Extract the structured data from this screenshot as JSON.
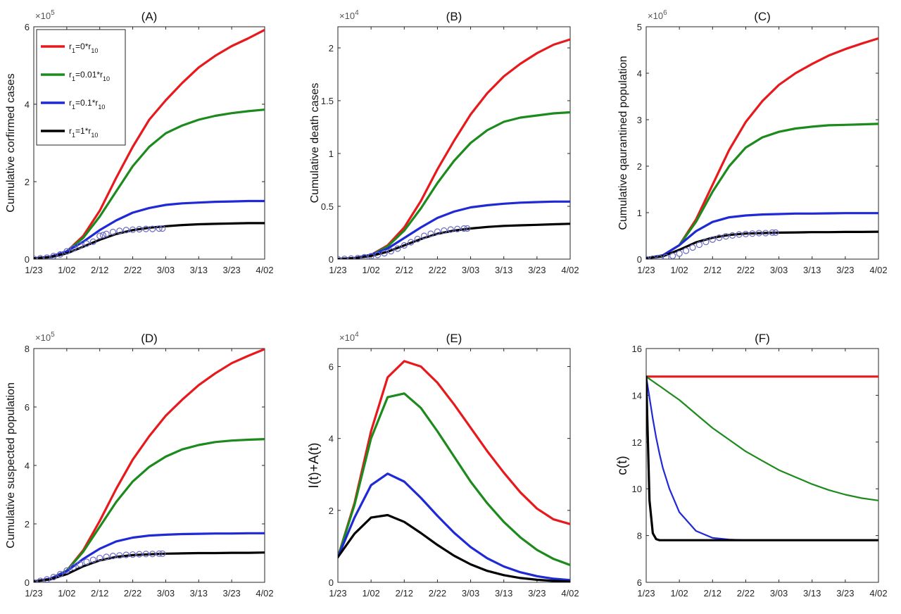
{
  "figure": {
    "xtick_labels": [
      "1/23",
      "1/02",
      "2/12",
      "2/22",
      "3/03",
      "3/13",
      "3/23",
      "4/02"
    ],
    "legend_entries": [
      {
        "base": "r",
        "sub": "1",
        "text": "=0*r",
        "sub2": "10"
      },
      {
        "base": "r",
        "sub": "1",
        "text": "=0.01*r",
        "sub2": "10"
      },
      {
        "base": "r",
        "sub": "1",
        "text": "=0.1*r",
        "sub2": "10"
      },
      {
        "base": "r",
        "sub": "1",
        "text": "=1*r",
        "sub2": "10"
      }
    ],
    "colors": {
      "red": "#e8191c",
      "green": "#1c8a1c",
      "blue": "#1f29d6",
      "black": "#000000",
      "markers": "#6a6ac4"
    }
  },
  "chart_data": [
    {
      "id": "A",
      "type": "line",
      "title": "(A)",
      "ylabel": "Cumulative corfirmed cases",
      "exponent": "×10",
      "exponent_power": "5",
      "ylim": [
        0,
        6
      ],
      "yticks": [
        0,
        2,
        4,
        6
      ],
      "ytick_labels": [
        "0",
        "2",
        "4",
        "6"
      ],
      "x": [
        0,
        5,
        10,
        15,
        20,
        25,
        30,
        35,
        40,
        45,
        50,
        55,
        60,
        65,
        70
      ],
      "series": [
        {
          "name": "r1=0*r10",
          "color": "#e8191c",
          "values": [
            0.02,
            0.06,
            0.2,
            0.6,
            1.25,
            2.1,
            2.9,
            3.6,
            4.1,
            4.55,
            4.95,
            5.25,
            5.5,
            5.7,
            5.92
          ]
        },
        {
          "name": "r1=0.01*r10",
          "color": "#1c8a1c",
          "values": [
            0.02,
            0.06,
            0.2,
            0.55,
            1.1,
            1.75,
            2.4,
            2.9,
            3.25,
            3.45,
            3.6,
            3.7,
            3.77,
            3.82,
            3.86
          ]
        },
        {
          "name": "r1=0.1*r10",
          "color": "#1f29d6",
          "values": [
            0.02,
            0.06,
            0.2,
            0.45,
            0.75,
            1.0,
            1.2,
            1.32,
            1.4,
            1.44,
            1.46,
            1.48,
            1.49,
            1.5,
            1.5
          ]
        },
        {
          "name": "r1=1*r10",
          "color": "#000000",
          "values": [
            0.02,
            0.05,
            0.15,
            0.32,
            0.5,
            0.65,
            0.75,
            0.81,
            0.85,
            0.88,
            0.9,
            0.91,
            0.92,
            0.93,
            0.93
          ]
        }
      ],
      "observed": {
        "x": [
          0,
          2,
          4,
          6,
          8,
          10,
          12,
          14,
          16,
          18,
          20,
          21,
          22,
          24,
          26,
          28,
          30,
          32,
          34,
          36,
          38,
          39
        ],
        "y": [
          0.01,
          0.02,
          0.04,
          0.08,
          0.12,
          0.2,
          0.28,
          0.35,
          0.4,
          0.45,
          0.6,
          0.62,
          0.65,
          0.7,
          0.73,
          0.75,
          0.76,
          0.77,
          0.78,
          0.78,
          0.79,
          0.79
        ]
      },
      "legend": "top-left"
    },
    {
      "id": "B",
      "type": "line",
      "title": "(B)",
      "ylabel": "Cumulative death cases",
      "exponent": "×10",
      "exponent_power": "4",
      "ylim": [
        0,
        2.2
      ],
      "yticks": [
        0,
        0.5,
        1,
        1.5,
        2
      ],
      "ytick_labels": [
        "0",
        "0.5",
        "1",
        "1.5",
        "2"
      ],
      "x": [
        0,
        5,
        10,
        15,
        20,
        25,
        30,
        35,
        40,
        45,
        50,
        55,
        60,
        65,
        70
      ],
      "series": [
        {
          "name": "r1=0*r10",
          "color": "#e8191c",
          "values": [
            0.002,
            0.01,
            0.04,
            0.13,
            0.3,
            0.55,
            0.85,
            1.12,
            1.37,
            1.57,
            1.73,
            1.85,
            1.95,
            2.03,
            2.08
          ]
        },
        {
          "name": "r1=0.01*r10",
          "color": "#1c8a1c",
          "values": [
            0.002,
            0.01,
            0.04,
            0.12,
            0.27,
            0.48,
            0.72,
            0.93,
            1.1,
            1.22,
            1.3,
            1.34,
            1.36,
            1.38,
            1.39
          ]
        },
        {
          "name": "r1=0.1*r10",
          "color": "#1f29d6",
          "values": [
            0.002,
            0.01,
            0.04,
            0.1,
            0.2,
            0.3,
            0.39,
            0.45,
            0.49,
            0.51,
            0.525,
            0.535,
            0.54,
            0.545,
            0.545
          ]
        },
        {
          "name": "r1=1*r10",
          "color": "#000000",
          "values": [
            0.002,
            0.008,
            0.03,
            0.07,
            0.13,
            0.19,
            0.24,
            0.27,
            0.29,
            0.305,
            0.315,
            0.32,
            0.325,
            0.33,
            0.335
          ]
        }
      ],
      "observed": {
        "x": [
          0,
          2,
          4,
          6,
          8,
          10,
          12,
          14,
          16,
          18,
          20,
          22,
          24,
          26,
          28,
          30,
          32,
          34,
          36,
          38,
          39
        ],
        "y": [
          0.0,
          0.002,
          0.005,
          0.01,
          0.018,
          0.028,
          0.04,
          0.055,
          0.075,
          0.1,
          0.13,
          0.16,
          0.19,
          0.22,
          0.24,
          0.26,
          0.27,
          0.28,
          0.285,
          0.29,
          0.29
        ]
      }
    },
    {
      "id": "C",
      "type": "line",
      "title": "(C)",
      "ylabel": "Cumulative qaurantined population",
      "exponent": "×10",
      "exponent_power": "6",
      "ylim": [
        0,
        5
      ],
      "yticks": [
        0,
        1,
        2,
        3,
        4,
        5
      ],
      "ytick_labels": [
        "0",
        "1",
        "2",
        "3",
        "4",
        "5"
      ],
      "x": [
        0,
        5,
        10,
        15,
        20,
        25,
        30,
        35,
        40,
        45,
        50,
        55,
        60,
        65,
        70
      ],
      "series": [
        {
          "name": "r1=0*r10",
          "color": "#e8191c",
          "values": [
            0.02,
            0.08,
            0.3,
            0.85,
            1.6,
            2.35,
            2.95,
            3.4,
            3.75,
            4.0,
            4.2,
            4.38,
            4.52,
            4.64,
            4.75
          ]
        },
        {
          "name": "r1=0.01*r10",
          "color": "#1c8a1c",
          "values": [
            0.02,
            0.08,
            0.3,
            0.8,
            1.45,
            2.0,
            2.4,
            2.62,
            2.74,
            2.81,
            2.85,
            2.88,
            2.89,
            2.9,
            2.91
          ]
        },
        {
          "name": "r1=0.1*r10",
          "color": "#1f29d6",
          "values": [
            0.02,
            0.08,
            0.3,
            0.6,
            0.8,
            0.9,
            0.94,
            0.96,
            0.97,
            0.98,
            0.98,
            0.985,
            0.99,
            0.99,
            0.99
          ]
        },
        {
          "name": "r1=1*r10",
          "color": "#000000",
          "values": [
            0.02,
            0.06,
            0.2,
            0.36,
            0.46,
            0.52,
            0.55,
            0.56,
            0.57,
            0.575,
            0.58,
            0.58,
            0.585,
            0.585,
            0.59
          ]
        }
      ],
      "observed": {
        "x": [
          0,
          2,
          4,
          6,
          8,
          10,
          12,
          14,
          16,
          18,
          20,
          22,
          24,
          26,
          28,
          30,
          32,
          34,
          36,
          38,
          39
        ],
        "y": [
          0.0,
          0.01,
          0.02,
          0.04,
          0.07,
          0.12,
          0.18,
          0.25,
          0.31,
          0.37,
          0.42,
          0.46,
          0.49,
          0.51,
          0.53,
          0.54,
          0.55,
          0.56,
          0.56,
          0.57,
          0.57
        ]
      }
    },
    {
      "id": "D",
      "type": "line",
      "title": "(D)",
      "ylabel": "Cumulative suspected population",
      "exponent": "×10",
      "exponent_power": "5",
      "ylim": [
        0,
        8
      ],
      "yticks": [
        0,
        2,
        4,
        6,
        8
      ],
      "ytick_labels": [
        "0",
        "2",
        "4",
        "6",
        "8"
      ],
      "x": [
        0,
        5,
        10,
        15,
        20,
        25,
        30,
        35,
        40,
        45,
        50,
        55,
        60,
        65,
        70
      ],
      "series": [
        {
          "name": "r1=0*r10",
          "color": "#e8191c",
          "values": [
            0.03,
            0.12,
            0.4,
            1.1,
            2.1,
            3.2,
            4.2,
            5.0,
            5.7,
            6.25,
            6.75,
            7.15,
            7.5,
            7.75,
            7.98
          ]
        },
        {
          "name": "r1=0.01*r10",
          "color": "#1c8a1c",
          "values": [
            0.03,
            0.12,
            0.4,
            1.05,
            1.9,
            2.75,
            3.45,
            3.95,
            4.3,
            4.55,
            4.7,
            4.8,
            4.85,
            4.88,
            4.9
          ]
        },
        {
          "name": "r1=0.1*r10",
          "color": "#1f29d6",
          "values": [
            0.03,
            0.12,
            0.38,
            0.8,
            1.15,
            1.4,
            1.53,
            1.6,
            1.63,
            1.65,
            1.66,
            1.67,
            1.67,
            1.68,
            1.68
          ]
        },
        {
          "name": "r1=1*r10",
          "color": "#000000",
          "values": [
            0.03,
            0.1,
            0.28,
            0.55,
            0.75,
            0.87,
            0.93,
            0.96,
            0.98,
            0.99,
            1.0,
            1.0,
            1.01,
            1.01,
            1.02
          ]
        }
      ],
      "observed": {
        "x": [
          0,
          2,
          4,
          6,
          8,
          10,
          12,
          14,
          16,
          18,
          20,
          22,
          24,
          26,
          28,
          30,
          32,
          34,
          36,
          38,
          39
        ],
        "y": [
          0.0,
          0.05,
          0.1,
          0.18,
          0.28,
          0.4,
          0.52,
          0.62,
          0.7,
          0.77,
          0.83,
          0.87,
          0.9,
          0.92,
          0.94,
          0.95,
          0.96,
          0.97,
          0.97,
          0.98,
          0.98
        ]
      }
    },
    {
      "id": "E",
      "type": "line",
      "title": "(E)",
      "ylabel": "I(t)+A(t)",
      "exponent": "×10",
      "exponent_power": "4",
      "ylim": [
        0,
        6.5
      ],
      "yticks": [
        0,
        2,
        4,
        6
      ],
      "ytick_labels": [
        "0",
        "2",
        "4",
        "6"
      ],
      "x": [
        0,
        5,
        10,
        15,
        20,
        25,
        30,
        35,
        40,
        45,
        50,
        55,
        60,
        65,
        70
      ],
      "series": [
        {
          "name": "r1=0*r10",
          "color": "#e8191c",
          "values": [
            0.7,
            2.2,
            4.2,
            5.7,
            6.15,
            6.0,
            5.55,
            4.95,
            4.3,
            3.65,
            3.05,
            2.5,
            2.05,
            1.75,
            1.62
          ]
        },
        {
          "name": "r1=0.01*r10",
          "color": "#1c8a1c",
          "values": [
            0.7,
            2.15,
            4.0,
            5.15,
            5.25,
            4.85,
            4.2,
            3.5,
            2.8,
            2.2,
            1.68,
            1.25,
            0.9,
            0.65,
            0.48
          ]
        },
        {
          "name": "r1=0.1*r10",
          "color": "#1f29d6",
          "values": [
            0.7,
            1.8,
            2.7,
            3.02,
            2.8,
            2.35,
            1.85,
            1.38,
            0.98,
            0.67,
            0.44,
            0.28,
            0.17,
            0.1,
            0.06
          ]
        },
        {
          "name": "r1=1*r10",
          "color": "#000000",
          "values": [
            0.7,
            1.35,
            1.8,
            1.87,
            1.68,
            1.37,
            1.04,
            0.74,
            0.5,
            0.32,
            0.2,
            0.12,
            0.07,
            0.04,
            0.02
          ]
        }
      ]
    },
    {
      "id": "F",
      "type": "line",
      "title": "(F)",
      "ylabel": "c(t)",
      "exponent": "",
      "exponent_power": "",
      "ylim": [
        6,
        16
      ],
      "yticks": [
        6,
        8,
        10,
        12,
        14,
        16
      ],
      "ytick_labels": [
        "6",
        "8",
        "10",
        "12",
        "14",
        "16"
      ],
      "x": [
        0,
        1,
        2,
        3,
        4,
        5,
        7,
        10,
        15,
        20,
        25,
        30,
        35,
        40,
        45,
        50,
        55,
        60,
        65,
        70
      ],
      "series": [
        {
          "name": "r1=0*r10",
          "color": "#e8191c",
          "values": [
            14.8,
            14.8,
            14.8,
            14.8,
            14.8,
            14.8,
            14.8,
            14.8,
            14.8,
            14.8,
            14.8,
            14.8,
            14.8,
            14.8,
            14.8,
            14.8,
            14.8,
            14.8,
            14.8,
            14.8
          ]
        },
        {
          "name": "r1=0.01*r10",
          "color": "#1c8a1c",
          "values": [
            14.8,
            14.7,
            14.6,
            14.5,
            14.4,
            14.3,
            14.1,
            13.8,
            13.2,
            12.6,
            12.1,
            11.6,
            11.2,
            10.8,
            10.5,
            10.2,
            9.95,
            9.75,
            9.6,
            9.5
          ]
        },
        {
          "name": "r1=0.1*r10",
          "color": "#1f29d6",
          "values": [
            14.8,
            13.9,
            13.0,
            12.2,
            11.5,
            10.9,
            10.0,
            9.0,
            8.2,
            7.9,
            7.83,
            7.8,
            7.8,
            7.8,
            7.8,
            7.8,
            7.8,
            7.8,
            7.8,
            7.8
          ]
        },
        {
          "name": "r1=1*r10",
          "color": "#000000",
          "values": [
            14.8,
            9.5,
            8.1,
            7.85,
            7.8,
            7.8,
            7.8,
            7.8,
            7.8,
            7.8,
            7.8,
            7.8,
            7.8,
            7.8,
            7.8,
            7.8,
            7.8,
            7.8,
            7.8,
            7.8
          ]
        }
      ]
    }
  ]
}
